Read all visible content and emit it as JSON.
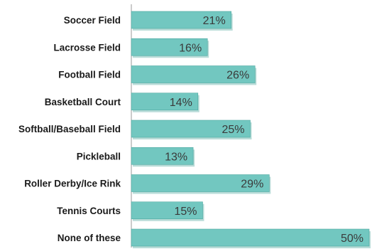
{
  "chart_data": {
    "type": "bar",
    "orientation": "horizontal",
    "categories": [
      "Soccer Field",
      "Lacrosse Field",
      "Football Field",
      "Basketball Court",
      "Softball/Baseball Field",
      "Pickleball",
      "Roller Derby/Ice Rink",
      "Tennis Courts",
      "None of these"
    ],
    "values": [
      21,
      16,
      26,
      14,
      25,
      13,
      29,
      15,
      50
    ],
    "value_labels": [
      "21%",
      "16%",
      "26%",
      "14%",
      "25%",
      "13%",
      "29%",
      "15%",
      "50%"
    ],
    "title": "",
    "xlabel": "",
    "ylabel": "",
    "xlim": [
      0,
      50
    ],
    "grid": false,
    "legend": "none",
    "colors": {
      "bar": "#72c7c0",
      "bar_edge": "#4fa8a1",
      "bar_shadow": "#b9dcd8",
      "value_label": "#3a3a3a",
      "category_label": "#1a1a1a",
      "axis": "#9a9a9a"
    }
  }
}
